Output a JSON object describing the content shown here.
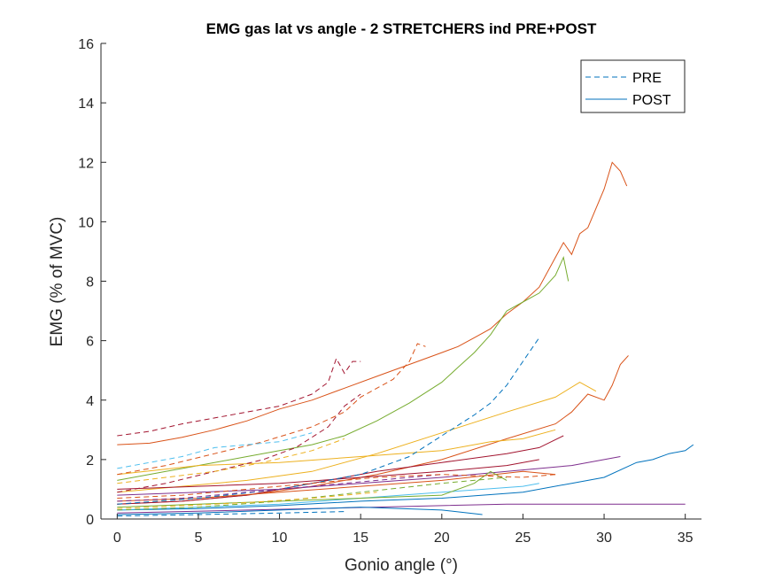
{
  "chart_data": {
    "type": "line",
    "title": "EMG gas lat vs angle - 2 STRETCHERS ind PRE+POST",
    "xlabel": "Gonio angle (°)",
    "ylabel": "EMG (% of MVC)",
    "xlim": [
      -1,
      36
    ],
    "ylim": [
      0,
      16
    ],
    "xticks": [
      0,
      5,
      10,
      15,
      20,
      25,
      30,
      35
    ],
    "yticks": [
      0,
      2,
      4,
      6,
      8,
      10,
      12,
      14,
      16
    ],
    "grid": false,
    "legend_position": "top-right",
    "legend": [
      {
        "label": "PRE",
        "style": "dashed",
        "color": "#0072BD"
      },
      {
        "label": "POST",
        "style": "solid",
        "color": "#0072BD"
      }
    ],
    "series": [
      {
        "style": "solid",
        "color": "#D95319",
        "points": [
          [
            0,
            2.5
          ],
          [
            2,
            2.55
          ],
          [
            4,
            2.75
          ],
          [
            6,
            3.0
          ],
          [
            8,
            3.3
          ],
          [
            10,
            3.7
          ],
          [
            12,
            4.0
          ],
          [
            14,
            4.4
          ],
          [
            16,
            4.8
          ],
          [
            18,
            5.2
          ],
          [
            20,
            5.6
          ],
          [
            21,
            5.8
          ],
          [
            22,
            6.1
          ],
          [
            23,
            6.4
          ],
          [
            24,
            6.9
          ],
          [
            25,
            7.3
          ],
          [
            26,
            7.8
          ],
          [
            27,
            8.8
          ],
          [
            27.5,
            9.3
          ],
          [
            28,
            8.9
          ],
          [
            28.5,
            9.6
          ],
          [
            29,
            9.8
          ],
          [
            30,
            11.1
          ],
          [
            30.5,
            12.0
          ],
          [
            31,
            11.7
          ],
          [
            31.4,
            11.2
          ]
        ]
      },
      {
        "style": "solid",
        "color": "#77AC30",
        "points": [
          [
            0,
            1.3
          ],
          [
            3,
            1.6
          ],
          [
            5,
            1.8
          ],
          [
            8,
            2.1
          ],
          [
            10,
            2.3
          ],
          [
            12,
            2.5
          ],
          [
            14,
            2.8
          ],
          [
            16,
            3.3
          ],
          [
            18,
            3.9
          ],
          [
            20,
            4.6
          ],
          [
            21,
            5.1
          ],
          [
            22,
            5.6
          ],
          [
            23,
            6.2
          ],
          [
            24,
            7.0
          ],
          [
            25,
            7.3
          ],
          [
            26,
            7.6
          ],
          [
            27,
            8.2
          ],
          [
            27.5,
            8.8
          ],
          [
            27.8,
            8.0
          ]
        ]
      },
      {
        "style": "solid",
        "color": "#D95319",
        "points": [
          [
            0,
            0.5
          ],
          [
            4,
            0.6
          ],
          [
            8,
            0.8
          ],
          [
            12,
            1.1
          ],
          [
            16,
            1.5
          ],
          [
            20,
            2.0
          ],
          [
            24,
            2.7
          ],
          [
            27,
            3.2
          ],
          [
            28,
            3.6
          ],
          [
            29,
            4.2
          ],
          [
            30,
            4.0
          ],
          [
            30.5,
            4.5
          ],
          [
            31,
            5.2
          ],
          [
            31.5,
            5.5
          ]
        ]
      },
      {
        "style": "solid",
        "color": "#EDB120",
        "points": [
          [
            0,
            0.9
          ],
          [
            4,
            1.1
          ],
          [
            8,
            1.3
          ],
          [
            12,
            1.6
          ],
          [
            16,
            2.2
          ],
          [
            20,
            2.9
          ],
          [
            24,
            3.6
          ],
          [
            27,
            4.1
          ],
          [
            28.5,
            4.6
          ],
          [
            29.5,
            4.3
          ]
        ]
      },
      {
        "style": "solid",
        "color": "#0072BD",
        "points": [
          [
            0,
            0.3
          ],
          [
            5,
            0.35
          ],
          [
            10,
            0.45
          ],
          [
            15,
            0.6
          ],
          [
            20,
            0.7
          ],
          [
            25,
            0.9
          ],
          [
            28,
            1.2
          ],
          [
            30,
            1.4
          ],
          [
            32,
            1.9
          ],
          [
            33,
            2.0
          ],
          [
            34,
            2.2
          ],
          [
            35,
            2.3
          ],
          [
            35.5,
            2.5
          ]
        ]
      },
      {
        "style": "solid",
        "color": "#7E2F8E",
        "points": [
          [
            0,
            0.8
          ],
          [
            5,
            0.9
          ],
          [
            10,
            1.0
          ],
          [
            15,
            1.2
          ],
          [
            20,
            1.4
          ],
          [
            24,
            1.6
          ],
          [
            28,
            1.8
          ],
          [
            30,
            2.0
          ],
          [
            31,
            2.1
          ]
        ]
      },
      {
        "style": "solid",
        "color": "#A2142F",
        "points": [
          [
            0,
            0.5
          ],
          [
            4,
            0.6
          ],
          [
            8,
            0.8
          ],
          [
            12,
            1.2
          ],
          [
            16,
            1.6
          ],
          [
            20,
            1.9
          ],
          [
            24,
            2.2
          ],
          [
            26,
            2.4
          ],
          [
            27.5,
            2.8
          ]
        ]
      },
      {
        "style": "solid",
        "color": "#EDB120",
        "points": [
          [
            0,
            1.5
          ],
          [
            5,
            1.8
          ],
          [
            10,
            1.9
          ],
          [
            15,
            2.1
          ],
          [
            20,
            2.3
          ],
          [
            23,
            2.6
          ],
          [
            25,
            2.7
          ],
          [
            27,
            3.0
          ]
        ]
      },
      {
        "style": "solid",
        "color": "#7E2F8E",
        "points": [
          [
            0,
            0.2
          ],
          [
            8,
            0.3
          ],
          [
            16,
            0.4
          ],
          [
            24,
            0.5
          ],
          [
            30,
            0.5
          ],
          [
            35,
            0.5
          ]
        ]
      },
      {
        "style": "solid",
        "color": "#4DBEEE",
        "points": [
          [
            0,
            0.3
          ],
          [
            5,
            0.4
          ],
          [
            10,
            0.5
          ],
          [
            15,
            0.7
          ],
          [
            20,
            0.9
          ],
          [
            25,
            1.1
          ],
          [
            26,
            1.2
          ]
        ]
      },
      {
        "style": "solid",
        "color": "#0072BD",
        "points": [
          [
            0,
            0.15
          ],
          [
            5,
            0.2
          ],
          [
            10,
            0.3
          ],
          [
            15,
            0.4
          ],
          [
            20,
            0.3
          ],
          [
            22.5,
            0.15
          ]
        ]
      },
      {
        "style": "solid",
        "color": "#D95319",
        "points": [
          [
            0,
            0.6
          ],
          [
            5,
            0.7
          ],
          [
            10,
            0.9
          ],
          [
            15,
            1.1
          ],
          [
            20,
            1.3
          ],
          [
            25,
            1.6
          ],
          [
            27,
            1.5
          ]
        ]
      },
      {
        "style": "solid",
        "color": "#77AC30",
        "points": [
          [
            0,
            0.4
          ],
          [
            5,
            0.5
          ],
          [
            10,
            0.6
          ],
          [
            15,
            0.7
          ],
          [
            20,
            0.8
          ],
          [
            22,
            1.2
          ],
          [
            23,
            1.6
          ],
          [
            24,
            1.3
          ]
        ]
      },
      {
        "style": "solid",
        "color": "#A2142F",
        "points": [
          [
            0,
            1.0
          ],
          [
            5,
            1.1
          ],
          [
            10,
            1.2
          ],
          [
            15,
            1.4
          ],
          [
            20,
            1.6
          ],
          [
            24,
            1.8
          ],
          [
            26,
            2.0
          ]
        ]
      },
      {
        "style": "dashed",
        "color": "#A2142F",
        "points": [
          [
            0,
            2.8
          ],
          [
            2,
            2.95
          ],
          [
            4,
            3.2
          ],
          [
            6,
            3.4
          ],
          [
            8,
            3.6
          ],
          [
            10,
            3.8
          ],
          [
            11,
            4.0
          ],
          [
            12,
            4.2
          ],
          [
            13,
            4.6
          ],
          [
            13.5,
            5.4
          ],
          [
            14,
            4.9
          ],
          [
            14.5,
            5.3
          ],
          [
            15,
            5.3
          ]
        ]
      },
      {
        "style": "dashed",
        "color": "#D95319",
        "points": [
          [
            0,
            1.5
          ],
          [
            3,
            1.8
          ],
          [
            6,
            2.2
          ],
          [
            9,
            2.6
          ],
          [
            12,
            3.1
          ],
          [
            14,
            3.6
          ],
          [
            15,
            4.1
          ],
          [
            16,
            4.4
          ],
          [
            17,
            4.7
          ],
          [
            18,
            5.3
          ],
          [
            18.5,
            5.9
          ],
          [
            19,
            5.8
          ]
        ]
      },
      {
        "style": "dashed",
        "color": "#0072BD",
        "points": [
          [
            0,
            0.5
          ],
          [
            5,
            0.7
          ],
          [
            10,
            1.0
          ],
          [
            15,
            1.5
          ],
          [
            18,
            2.1
          ],
          [
            20,
            2.8
          ],
          [
            22,
            3.5
          ],
          [
            23,
            3.9
          ],
          [
            24,
            4.5
          ],
          [
            25,
            5.3
          ],
          [
            26,
            6.1
          ]
        ]
      },
      {
        "style": "dashed",
        "color": "#A2142F",
        "points": [
          [
            0,
            0.9
          ],
          [
            3,
            1.2
          ],
          [
            6,
            1.6
          ],
          [
            9,
            2.0
          ],
          [
            11,
            2.4
          ],
          [
            13,
            3.1
          ],
          [
            14,
            3.8
          ],
          [
            15,
            4.2
          ]
        ]
      },
      {
        "style": "dashed",
        "color": "#4DBEEE",
        "points": [
          [
            0,
            1.7
          ],
          [
            2,
            1.9
          ],
          [
            4,
            2.1
          ],
          [
            6,
            2.4
          ],
          [
            8,
            2.5
          ],
          [
            10,
            2.6
          ],
          [
            12,
            2.9
          ]
        ]
      },
      {
        "style": "dashed",
        "color": "#EDB120",
        "points": [
          [
            0,
            1.2
          ],
          [
            3,
            1.4
          ],
          [
            6,
            1.6
          ],
          [
            9,
            1.9
          ],
          [
            12,
            2.3
          ],
          [
            14,
            2.7
          ]
        ]
      },
      {
        "style": "dashed",
        "color": "#77AC30",
        "points": [
          [
            0,
            0.3
          ],
          [
            5,
            0.4
          ],
          [
            10,
            0.6
          ],
          [
            15,
            0.9
          ],
          [
            20,
            1.2
          ],
          [
            24,
            1.4
          ]
        ]
      },
      {
        "style": "dashed",
        "color": "#7E2F8E",
        "points": [
          [
            0,
            0.6
          ],
          [
            4,
            0.7
          ],
          [
            8,
            0.9
          ],
          [
            12,
            1.1
          ],
          [
            16,
            1.3
          ],
          [
            20,
            1.5
          ]
        ]
      },
      {
        "style": "dashed",
        "color": "#0072BD",
        "points": [
          [
            0,
            0.1
          ],
          [
            5,
            0.15
          ],
          [
            10,
            0.2
          ],
          [
            14,
            0.25
          ]
        ]
      },
      {
        "style": "dashed",
        "color": "#EDB120",
        "points": [
          [
            0,
            0.35
          ],
          [
            4,
            0.45
          ],
          [
            8,
            0.55
          ],
          [
            12,
            0.7
          ],
          [
            16,
            0.9
          ]
        ]
      },
      {
        "style": "dashed",
        "color": "#D95319",
        "points": [
          [
            0,
            0.7
          ],
          [
            4,
            0.8
          ],
          [
            8,
            1.0
          ],
          [
            12,
            1.2
          ],
          [
            16,
            1.4
          ],
          [
            20,
            1.5
          ],
          [
            25,
            1.4
          ],
          [
            27,
            1.5
          ]
        ]
      }
    ]
  }
}
